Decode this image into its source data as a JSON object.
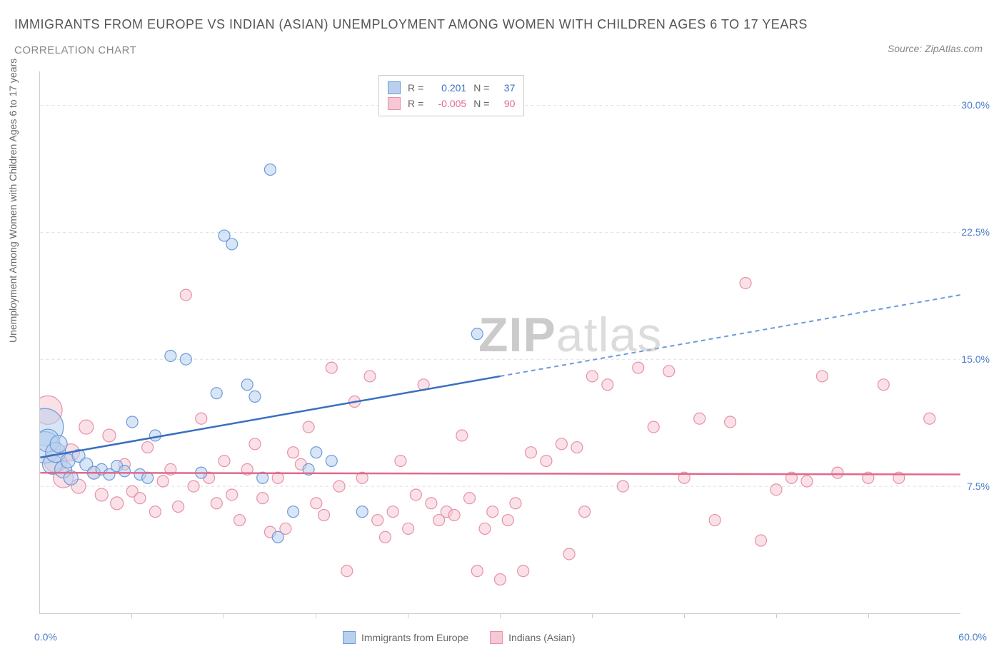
{
  "title": "IMMIGRANTS FROM EUROPE VS INDIAN (ASIAN) UNEMPLOYMENT AMONG WOMEN WITH CHILDREN AGES 6 TO 17 YEARS",
  "subtitle": "CORRELATION CHART",
  "source": "Source: ZipAtlas.com",
  "y_axis_label": "Unemployment Among Women with Children Ages 6 to 17 years",
  "watermark_bold": "ZIP",
  "watermark_light": "atlas",
  "chart": {
    "type": "scatter",
    "xlim": [
      0,
      60
    ],
    "ylim": [
      0,
      32
    ],
    "x_ticks": [
      0.0,
      60.0
    ],
    "x_tick_labels": [
      "0.0%",
      "60.0%"
    ],
    "y_ticks": [
      7.5,
      15.0,
      22.5,
      30.0
    ],
    "y_tick_labels": [
      "7.5%",
      "15.0%",
      "22.5%",
      "30.0%"
    ],
    "x_minor_ticks": [
      6,
      12,
      18,
      24,
      30,
      36,
      42,
      48,
      54
    ],
    "grid_color": "#dddddd",
    "background": "#ffffff",
    "series": [
      {
        "name": "Immigrants from Europe",
        "color_fill": "#b8d0ee",
        "color_stroke": "#6a9bd8",
        "fill_opacity": 0.55,
        "R": "0.201",
        "N": "37",
        "trend": {
          "x1": 0,
          "y1": 9.2,
          "x2": 30,
          "y2": 14.0,
          "x2_ext": 60,
          "y2_ext": 18.8,
          "solid_color": "#3a6fc0",
          "dash_color": "#6a9bd8"
        },
        "points": [
          {
            "x": 0.3,
            "y": 11.0,
            "r": 26
          },
          {
            "x": 0.3,
            "y": 9.8,
            "r": 22
          },
          {
            "x": 0.5,
            "y": 10.2,
            "r": 16
          },
          {
            "x": 0.8,
            "y": 8.8,
            "r": 14
          },
          {
            "x": 1.0,
            "y": 9.5,
            "r": 14
          },
          {
            "x": 1.2,
            "y": 10.0,
            "r": 12
          },
          {
            "x": 1.5,
            "y": 8.5,
            "r": 12
          },
          {
            "x": 1.8,
            "y": 9.0,
            "r": 10
          },
          {
            "x": 2.0,
            "y": 8.0,
            "r": 10
          },
          {
            "x": 2.5,
            "y": 9.3,
            "r": 9
          },
          {
            "x": 3.0,
            "y": 8.8,
            "r": 9
          },
          {
            "x": 3.5,
            "y": 8.3,
            "r": 9
          },
          {
            "x": 4.0,
            "y": 8.5,
            "r": 8
          },
          {
            "x": 4.5,
            "y": 8.2,
            "r": 8
          },
          {
            "x": 5.0,
            "y": 8.7,
            "r": 8
          },
          {
            "x": 5.5,
            "y": 8.4,
            "r": 8
          },
          {
            "x": 6.0,
            "y": 11.3,
            "r": 8
          },
          {
            "x": 6.5,
            "y": 8.2,
            "r": 8
          },
          {
            "x": 7.0,
            "y": 8.0,
            "r": 8
          },
          {
            "x": 7.5,
            "y": 10.5,
            "r": 8
          },
          {
            "x": 8.5,
            "y": 15.2,
            "r": 8
          },
          {
            "x": 9.5,
            "y": 15.0,
            "r": 8
          },
          {
            "x": 10.5,
            "y": 8.3,
            "r": 8
          },
          {
            "x": 11.5,
            "y": 13.0,
            "r": 8
          },
          {
            "x": 12.0,
            "y": 22.3,
            "r": 8
          },
          {
            "x": 12.5,
            "y": 21.8,
            "r": 8
          },
          {
            "x": 13.5,
            "y": 13.5,
            "r": 8
          },
          {
            "x": 14.0,
            "y": 12.8,
            "r": 8
          },
          {
            "x": 14.5,
            "y": 8.0,
            "r": 8
          },
          {
            "x": 15.0,
            "y": 26.2,
            "r": 8
          },
          {
            "x": 15.5,
            "y": 4.5,
            "r": 8
          },
          {
            "x": 16.5,
            "y": 6.0,
            "r": 8
          },
          {
            "x": 18.0,
            "y": 9.5,
            "r": 8
          },
          {
            "x": 19.0,
            "y": 9.0,
            "r": 8
          },
          {
            "x": 21.0,
            "y": 6.0,
            "r": 8
          },
          {
            "x": 17.5,
            "y": 8.5,
            "r": 8
          },
          {
            "x": 28.5,
            "y": 16.5,
            "r": 8
          }
        ]
      },
      {
        "name": "Indians (Asian)",
        "color_fill": "#f5c8d4",
        "color_stroke": "#e790a8",
        "fill_opacity": 0.55,
        "R": "-0.005",
        "N": "90",
        "trend": {
          "x1": 0,
          "y1": 8.3,
          "x2": 60,
          "y2": 8.2,
          "solid_color": "#e06a8a"
        },
        "points": [
          {
            "x": 0.5,
            "y": 12.0,
            "r": 20
          },
          {
            "x": 1.0,
            "y": 9.0,
            "r": 16
          },
          {
            "x": 1.5,
            "y": 8.0,
            "r": 14
          },
          {
            "x": 2.0,
            "y": 9.5,
            "r": 12
          },
          {
            "x": 2.5,
            "y": 7.5,
            "r": 10
          },
          {
            "x": 3.0,
            "y": 11.0,
            "r": 10
          },
          {
            "x": 3.5,
            "y": 8.3,
            "r": 9
          },
          {
            "x": 4.0,
            "y": 7.0,
            "r": 9
          },
          {
            "x": 4.5,
            "y": 10.5,
            "r": 9
          },
          {
            "x": 5.0,
            "y": 6.5,
            "r": 9
          },
          {
            "x": 5.5,
            "y": 8.8,
            "r": 8
          },
          {
            "x": 6.0,
            "y": 7.2,
            "r": 8
          },
          {
            "x": 6.5,
            "y": 6.8,
            "r": 8
          },
          {
            "x": 7.0,
            "y": 9.8,
            "r": 8
          },
          {
            "x": 7.5,
            "y": 6.0,
            "r": 8
          },
          {
            "x": 8.0,
            "y": 7.8,
            "r": 8
          },
          {
            "x": 8.5,
            "y": 8.5,
            "r": 8
          },
          {
            "x": 9.0,
            "y": 6.3,
            "r": 8
          },
          {
            "x": 9.5,
            "y": 18.8,
            "r": 8
          },
          {
            "x": 10.0,
            "y": 7.5,
            "r": 8
          },
          {
            "x": 10.5,
            "y": 11.5,
            "r": 8
          },
          {
            "x": 11.0,
            "y": 8.0,
            "r": 8
          },
          {
            "x": 11.5,
            "y": 6.5,
            "r": 8
          },
          {
            "x": 12.0,
            "y": 9.0,
            "r": 8
          },
          {
            "x": 12.5,
            "y": 7.0,
            "r": 8
          },
          {
            "x": 13.0,
            "y": 5.5,
            "r": 8
          },
          {
            "x": 13.5,
            "y": 8.5,
            "r": 8
          },
          {
            "x": 14.0,
            "y": 10.0,
            "r": 8
          },
          {
            "x": 14.5,
            "y": 6.8,
            "r": 8
          },
          {
            "x": 15.0,
            "y": 4.8,
            "r": 8
          },
          {
            "x": 15.5,
            "y": 8.0,
            "r": 8
          },
          {
            "x": 16.0,
            "y": 5.0,
            "r": 8
          },
          {
            "x": 16.5,
            "y": 9.5,
            "r": 8
          },
          {
            "x": 17.0,
            "y": 8.8,
            "r": 8
          },
          {
            "x": 17.5,
            "y": 11.0,
            "r": 8
          },
          {
            "x": 18.0,
            "y": 6.5,
            "r": 8
          },
          {
            "x": 18.5,
            "y": 5.8,
            "r": 8
          },
          {
            "x": 19.0,
            "y": 14.5,
            "r": 8
          },
          {
            "x": 19.5,
            "y": 7.5,
            "r": 8
          },
          {
            "x": 20.0,
            "y": 2.5,
            "r": 8
          },
          {
            "x": 20.5,
            "y": 12.5,
            "r": 8
          },
          {
            "x": 21.0,
            "y": 8.0,
            "r": 8
          },
          {
            "x": 21.5,
            "y": 14.0,
            "r": 8
          },
          {
            "x": 22.0,
            "y": 5.5,
            "r": 8
          },
          {
            "x": 22.5,
            "y": 4.5,
            "r": 8
          },
          {
            "x": 23.0,
            "y": 6.0,
            "r": 8
          },
          {
            "x": 23.5,
            "y": 9.0,
            "r": 8
          },
          {
            "x": 24.0,
            "y": 5.0,
            "r": 8
          },
          {
            "x": 24.5,
            "y": 7.0,
            "r": 8
          },
          {
            "x": 25.0,
            "y": 13.5,
            "r": 8
          },
          {
            "x": 25.5,
            "y": 6.5,
            "r": 8
          },
          {
            "x": 26.0,
            "y": 5.5,
            "r": 8
          },
          {
            "x": 26.5,
            "y": 6.0,
            "r": 8
          },
          {
            "x": 27.0,
            "y": 5.8,
            "r": 8
          },
          {
            "x": 27.5,
            "y": 10.5,
            "r": 8
          },
          {
            "x": 28.0,
            "y": 6.8,
            "r": 8
          },
          {
            "x": 28.5,
            "y": 2.5,
            "r": 8
          },
          {
            "x": 29.0,
            "y": 5.0,
            "r": 8
          },
          {
            "x": 29.5,
            "y": 6.0,
            "r": 8
          },
          {
            "x": 30.0,
            "y": 2.0,
            "r": 8
          },
          {
            "x": 30.5,
            "y": 5.5,
            "r": 8
          },
          {
            "x": 31.0,
            "y": 6.5,
            "r": 8
          },
          {
            "x": 31.5,
            "y": 2.5,
            "r": 8
          },
          {
            "x": 32.0,
            "y": 9.5,
            "r": 8
          },
          {
            "x": 33.0,
            "y": 9.0,
            "r": 8
          },
          {
            "x": 34.0,
            "y": 10.0,
            "r": 8
          },
          {
            "x": 34.5,
            "y": 3.5,
            "r": 8
          },
          {
            "x": 35.0,
            "y": 9.8,
            "r": 8
          },
          {
            "x": 35.5,
            "y": 6.0,
            "r": 8
          },
          {
            "x": 36.0,
            "y": 14.0,
            "r": 8
          },
          {
            "x": 37.0,
            "y": 13.5,
            "r": 8
          },
          {
            "x": 38.0,
            "y": 7.5,
            "r": 8
          },
          {
            "x": 39.0,
            "y": 14.5,
            "r": 8
          },
          {
            "x": 40.0,
            "y": 11.0,
            "r": 8
          },
          {
            "x": 41.0,
            "y": 14.3,
            "r": 8
          },
          {
            "x": 42.0,
            "y": 8.0,
            "r": 8
          },
          {
            "x": 43.0,
            "y": 11.5,
            "r": 8
          },
          {
            "x": 44.0,
            "y": 5.5,
            "r": 8
          },
          {
            "x": 45.0,
            "y": 11.3,
            "r": 8
          },
          {
            "x": 46.0,
            "y": 19.5,
            "r": 8
          },
          {
            "x": 47.0,
            "y": 4.3,
            "r": 8
          },
          {
            "x": 48.0,
            "y": 7.3,
            "r": 8
          },
          {
            "x": 49.0,
            "y": 8.0,
            "r": 8
          },
          {
            "x": 50.0,
            "y": 7.8,
            "r": 8
          },
          {
            "x": 51.0,
            "y": 14.0,
            "r": 8
          },
          {
            "x": 52.0,
            "y": 8.3,
            "r": 8
          },
          {
            "x": 55.0,
            "y": 13.5,
            "r": 8
          },
          {
            "x": 56.0,
            "y": 8.0,
            "r": 8
          },
          {
            "x": 58.0,
            "y": 11.5,
            "r": 8
          },
          {
            "x": 54.0,
            "y": 8.0,
            "r": 8
          }
        ]
      }
    ]
  },
  "legend_bottom": [
    {
      "label": "Immigrants from Europe",
      "fill": "#b8d0ee",
      "stroke": "#6a9bd8"
    },
    {
      "label": "Indians (Asian)",
      "fill": "#f5c8d4",
      "stroke": "#e790a8"
    }
  ]
}
